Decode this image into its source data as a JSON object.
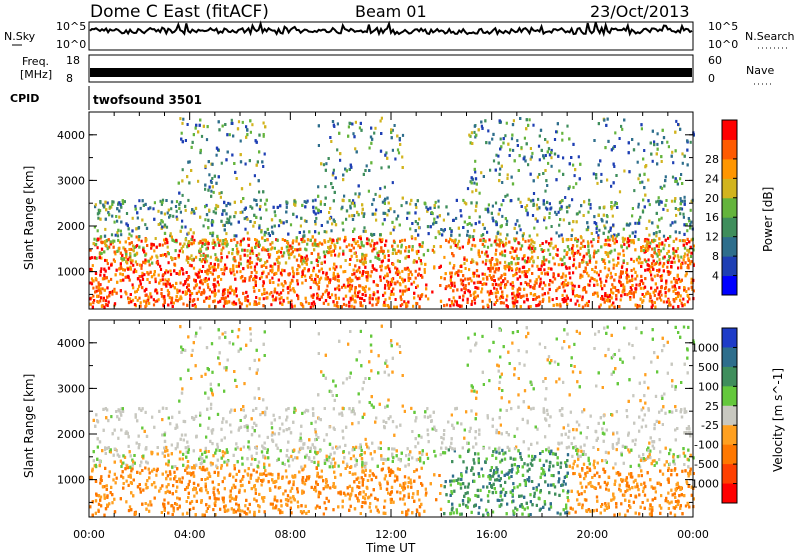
{
  "header": {
    "station": "Dome C East (fitACF)",
    "beam": "Beam 01",
    "date": "23/Oct/2013"
  },
  "info_panels": {
    "nsky_label": "N.Sky",
    "nsky_ticks": [
      "10^5",
      "10^0"
    ],
    "nsearch_label": "N.Search",
    "nsearch_ticks": [
      "10^5",
      "10^0"
    ],
    "freq_label_1": "Freq.",
    "freq_label_2": "[MHz]",
    "freq_ticks": [
      "18",
      "8"
    ],
    "nave_label": "Nave",
    "nave_ticks": [
      "60",
      "0"
    ],
    "cpid_label": "CPID",
    "cpid_value": "twofsound 3501"
  },
  "time_axis": {
    "label": "Time UT",
    "ticks": [
      "00:00",
      "04:00",
      "08:00",
      "12:00",
      "16:00",
      "20:00",
      "00:00"
    ]
  },
  "chart_data": [
    {
      "type": "heatmap",
      "ylabel": "Slant Range [km]",
      "xlabel": "",
      "yticks": [
        "1000",
        "2000",
        "3000",
        "4000"
      ],
      "ylim": [
        180,
        4500
      ],
      "colorbar": {
        "label": "Power [dB]",
        "ticks": [
          "4",
          "8",
          "12",
          "16",
          "20",
          "24",
          "28"
        ],
        "colors": [
          "#0000ff",
          "#1e3fb4",
          "#2e6e8c",
          "#3f8e5c",
          "#64b43c",
          "#d2b41e",
          "#ff9600",
          "#ff5a00",
          "#ff0000"
        ]
      }
    },
    {
      "type": "heatmap",
      "ylabel": "Slant Range [km]",
      "xlabel": "Time UT",
      "yticks": [
        "1000",
        "2000",
        "3000",
        "4000"
      ],
      "ylim": [
        180,
        4500
      ],
      "colorbar": {
        "label": "Velocity [m s^-1]",
        "ticks": [
          "1000",
          "500",
          "100",
          "25",
          "-25",
          "-100",
          "-500",
          "-1000"
        ],
        "colors": [
          "#1e3cc8",
          "#2e6e8c",
          "#3f8e5c",
          "#64c83c",
          "#c8c8c0",
          "#ffa020",
          "#ff7800",
          "#ff4000",
          "#ff0000"
        ]
      }
    }
  ]
}
